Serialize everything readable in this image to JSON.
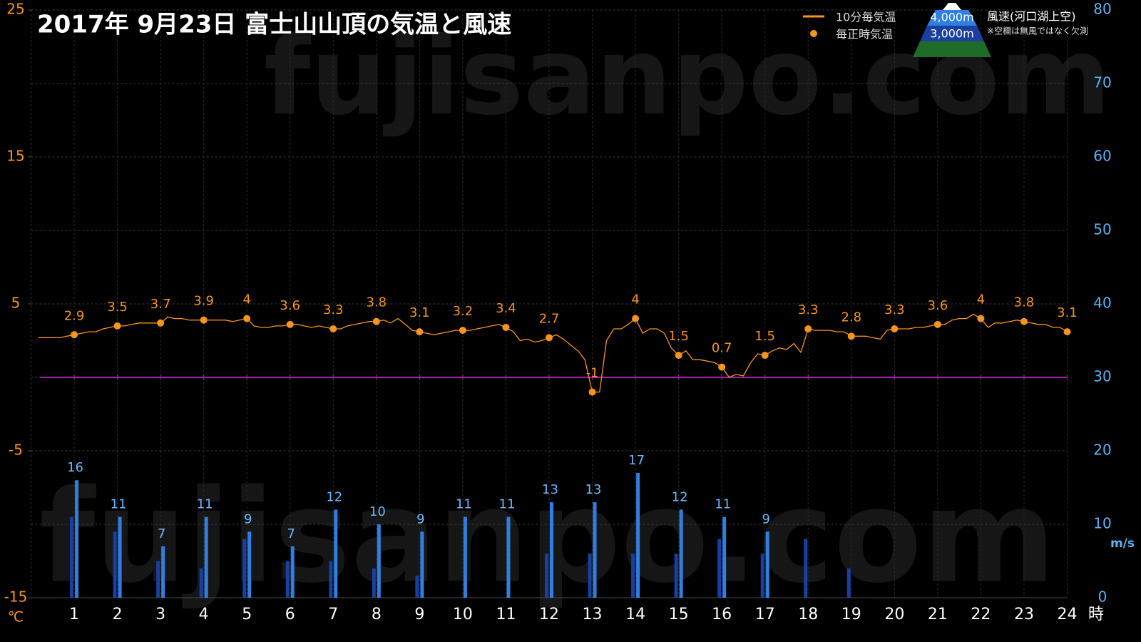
{
  "chart_data": {
    "type": "combo",
    "title": "2017年  9月23日   富士山山頂の気温と風速",
    "watermark": "fujisanpo.com",
    "y_unit": "℃",
    "y2_unit": "m/s",
    "x_unit": "時",
    "wind_legend_title": "風速(河口湖上空)",
    "note": "※空欄は無風ではなく欠測",
    "xlim": [
      0,
      24
    ],
    "xticks": [
      1,
      2,
      3,
      4,
      5,
      6,
      7,
      8,
      9,
      10,
      11,
      12,
      13,
      14,
      15,
      16,
      17,
      18,
      19,
      20,
      21,
      22,
      23,
      24
    ],
    "ylim": [
      -15,
      25
    ],
    "yticks": [
      -15,
      -5,
      5,
      15,
      25
    ],
    "y2lim": [
      0,
      80
    ],
    "y2ticks": [
      0,
      10,
      20,
      30,
      40,
      50,
      60,
      70,
      80
    ],
    "grid": true,
    "zero_line": {
      "value": 0,
      "color": "#a21fa8"
    },
    "series": [
      {
        "name": "10分毎気温",
        "type": "line",
        "color": "#f7941d",
        "x": [
          0.17,
          0.33,
          0.5,
          0.67,
          0.83,
          1,
          1.17,
          1.33,
          1.5,
          1.67,
          1.83,
          2,
          2.17,
          2.33,
          2.5,
          2.67,
          2.83,
          3,
          3.17,
          3.33,
          3.5,
          3.67,
          3.83,
          4,
          4.17,
          4.33,
          4.5,
          4.67,
          4.83,
          5,
          5.17,
          5.33,
          5.5,
          5.67,
          5.83,
          6,
          6.17,
          6.33,
          6.5,
          6.67,
          6.83,
          7,
          7.17,
          7.33,
          7.5,
          7.67,
          7.83,
          8,
          8.17,
          8.33,
          8.5,
          8.67,
          8.83,
          9,
          9.17,
          9.33,
          9.5,
          9.67,
          9.83,
          10,
          10.17,
          10.33,
          10.5,
          10.67,
          10.83,
          11,
          11.17,
          11.33,
          11.5,
          11.67,
          11.83,
          12,
          12.17,
          12.33,
          12.5,
          12.67,
          12.83,
          13,
          13.17,
          13.33,
          13.5,
          13.67,
          13.83,
          14,
          14.17,
          14.33,
          14.5,
          14.67,
          14.83,
          15,
          15.17,
          15.33,
          15.5,
          15.67,
          15.83,
          16,
          16.17,
          16.33,
          16.5,
          16.67,
          16.83,
          17,
          17.17,
          17.33,
          17.5,
          17.67,
          17.83,
          18,
          18.17,
          18.33,
          18.5,
          18.67,
          18.83,
          19,
          19.17,
          19.33,
          19.5,
          19.67,
          19.83,
          20,
          20.17,
          20.33,
          20.5,
          20.67,
          20.83,
          21,
          21.17,
          21.33,
          21.5,
          21.67,
          21.83,
          22,
          22.17,
          22.33,
          22.5,
          22.67,
          22.83,
          23,
          23.17,
          23.33,
          23.5,
          23.67,
          23.83,
          24
        ],
        "values": [
          2.7,
          2.7,
          2.7,
          2.7,
          2.8,
          2.9,
          3.0,
          3.1,
          3.1,
          3.3,
          3.4,
          3.5,
          3.5,
          3.6,
          3.7,
          3.7,
          3.7,
          3.7,
          4.1,
          4.0,
          4.0,
          3.9,
          3.9,
          3.9,
          3.9,
          3.9,
          3.9,
          3.8,
          3.9,
          4.0,
          3.5,
          3.4,
          3.4,
          3.5,
          3.5,
          3.6,
          3.6,
          3.5,
          3.4,
          3.5,
          3.4,
          3.3,
          3.3,
          3.5,
          3.6,
          3.7,
          3.8,
          3.8,
          3.9,
          3.7,
          4.0,
          3.6,
          3.2,
          3.1,
          3.0,
          2.9,
          3.0,
          3.1,
          3.2,
          3.2,
          3.2,
          3.3,
          3.4,
          3.5,
          3.6,
          3.4,
          3.1,
          2.5,
          2.6,
          2.4,
          2.5,
          2.7,
          2.9,
          2.6,
          2.2,
          1.8,
          1.2,
          -1.0,
          -1.0,
          2.5,
          3.3,
          3.3,
          3.6,
          4.0,
          3.0,
          3.3,
          3.3,
          3.0,
          2.0,
          1.5,
          1.8,
          1.2,
          1.2,
          1.1,
          1.0,
          0.7,
          0.0,
          0.2,
          0.1,
          1.0,
          1.6,
          1.5,
          1.8,
          2.0,
          1.9,
          2.3,
          1.7,
          3.3,
          3.2,
          3.2,
          3.2,
          3.1,
          3.1,
          2.8,
          2.8,
          2.8,
          2.7,
          2.6,
          3.2,
          3.3,
          3.3,
          3.3,
          3.4,
          3.4,
          3.5,
          3.6,
          3.6,
          3.9,
          4.0,
          4.0,
          4.3,
          4.0,
          3.4,
          3.7,
          3.7,
          3.8,
          3.9,
          3.8,
          3.7,
          3.6,
          3.6,
          3.4,
          3.4,
          3.1
        ]
      },
      {
        "name": "毎正時気温",
        "type": "scatter",
        "color": "#f7941d",
        "labels": true,
        "x": [
          1,
          2,
          3,
          4,
          5,
          6,
          7,
          8,
          9,
          10,
          11,
          12,
          13,
          14,
          15,
          16,
          17,
          18,
          19,
          20,
          21,
          22,
          23,
          24
        ],
        "values": [
          2.9,
          3.5,
          3.7,
          3.9,
          4,
          3.6,
          3.3,
          3.8,
          3.1,
          3.2,
          3.4,
          2.7,
          -1,
          4,
          1.5,
          0.7,
          1.5,
          3.3,
          2.8,
          3.3,
          3.6,
          4,
          3.8,
          3.1
        ]
      },
      {
        "name": "4,000m",
        "type": "bar",
        "axis": "y2",
        "color": "#2f7fe0",
        "labels": true,
        "offset": 1,
        "x": [
          1,
          2,
          3,
          4,
          5,
          6,
          7,
          8,
          9,
          10,
          11,
          12,
          13,
          14,
          15,
          16,
          17,
          18,
          19,
          20,
          21,
          22,
          23,
          24
        ],
        "values": [
          16,
          11,
          7,
          11,
          9,
          7,
          12,
          10,
          9,
          11,
          11,
          13,
          13,
          17,
          12,
          11,
          9,
          null,
          null,
          null,
          null,
          null,
          null,
          null
        ]
      },
      {
        "name": "3,000m",
        "type": "bar",
        "axis": "y2",
        "color": "#1a3f9e",
        "labels": false,
        "offset": -1,
        "x": [
          1,
          2,
          3,
          4,
          5,
          6,
          7,
          8,
          9,
          10,
          11,
          12,
          13,
          14,
          15,
          16,
          17,
          18,
          19,
          20,
          21,
          22,
          23,
          24
        ],
        "values": [
          11,
          9,
          5,
          4,
          8,
          5,
          5,
          4,
          3,
          null,
          null,
          6,
          6,
          6,
          6,
          8,
          6,
          8,
          4,
          null,
          null,
          null,
          null,
          null
        ]
      }
    ]
  }
}
